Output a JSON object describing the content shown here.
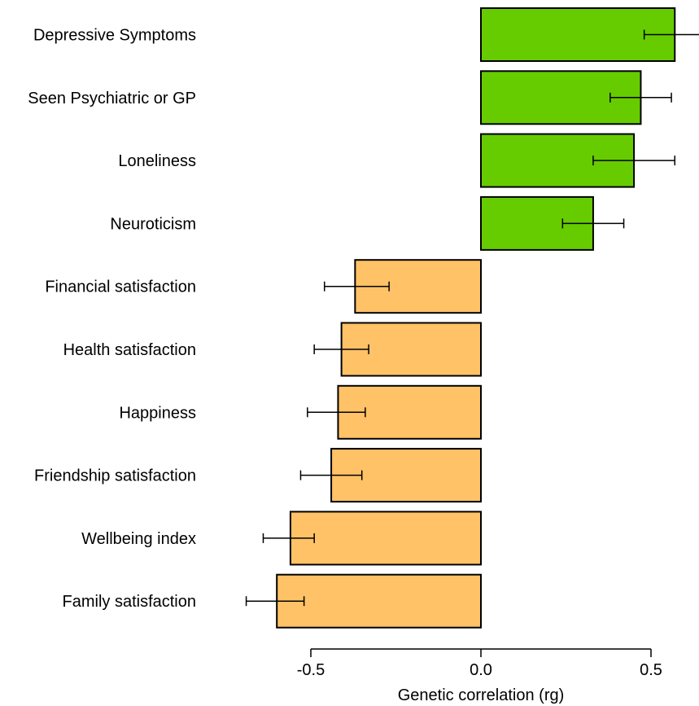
{
  "chart_data": {
    "type": "bar",
    "orientation": "horizontal",
    "title": "",
    "xlabel": "Genetic correlation (rg)",
    "ylabel": "",
    "xlim": [
      -0.59,
      0.59
    ],
    "xticks": [
      -0.5,
      0.0,
      0.5
    ],
    "xtick_labels": [
      "-0.5",
      "0.0",
      "0.5"
    ],
    "grid": false,
    "legend": "none",
    "colors": {
      "positive": "#66CC00",
      "negative": "#FFC266",
      "outline": "#000000"
    },
    "categories": [
      "Depressive Symptoms",
      "Seen Psychiatric or GP",
      "Loneliness",
      "Neuroticism",
      "Financial satisfaction",
      "Health satisfaction",
      "Happiness",
      "Friendship satisfaction",
      "Wellbeing index",
      "Family satisfaction"
    ],
    "values": [
      0.57,
      0.47,
      0.45,
      0.33,
      -0.37,
      -0.41,
      -0.42,
      -0.44,
      -0.56,
      -0.6
    ],
    "error_low": [
      0.48,
      0.38,
      0.33,
      0.24,
      -0.46,
      -0.49,
      -0.51,
      -0.53,
      -0.64,
      -0.69
    ],
    "error_high": [
      0.66,
      0.56,
      0.57,
      0.42,
      -0.27,
      -0.33,
      -0.34,
      -0.35,
      -0.49,
      -0.52
    ]
  }
}
